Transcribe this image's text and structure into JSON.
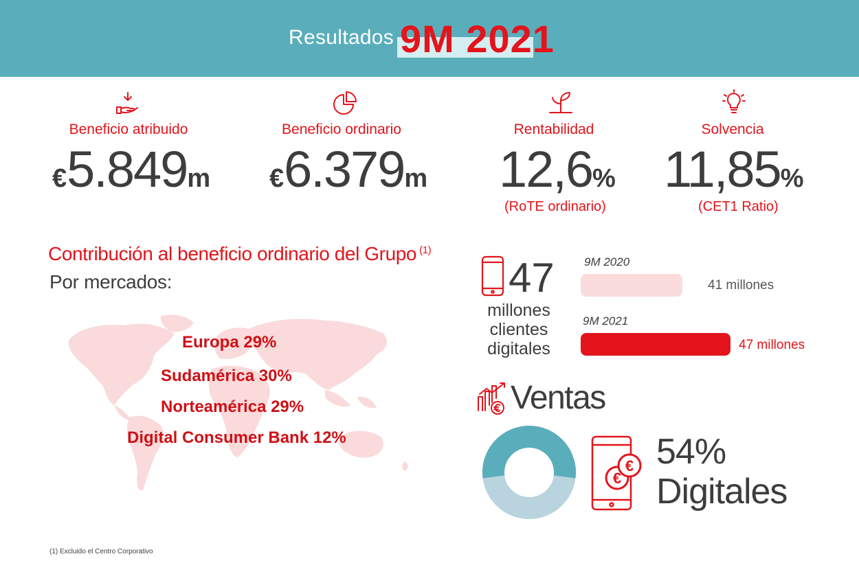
{
  "header": {
    "label": "Resultados",
    "period": "9M 2021"
  },
  "kpis": [
    {
      "label": "Beneficio atribuido",
      "currency": "€",
      "value": "5.849",
      "unit": "m",
      "icon": "hand-receive-icon"
    },
    {
      "label": "Beneficio ordinario",
      "currency": "€",
      "value": "6.379",
      "unit": "m",
      "icon": "pie-chart-icon"
    },
    {
      "label": "Rentabilidad",
      "value": "12,6",
      "unit": "%",
      "note": "(RoTE ordinario)",
      "icon": "sprout-icon"
    },
    {
      "label": "Solvencia",
      "value": "11,85",
      "unit": "%",
      "note": "(CET1 Ratio)",
      "icon": "lightbulb-icon"
    }
  ],
  "contribution": {
    "title": "Contribución al beneficio ordinario del Grupo",
    "footnote_ref": "(1)",
    "subtitle": "Por mercados:",
    "markets": [
      "Europa 29%",
      "Sudamérica 30%",
      "Norteamérica 29%",
      "Digital Consumer Bank 12%"
    ]
  },
  "digital_clients": {
    "number": "47",
    "text1": "millones",
    "text2": "clientes",
    "text3": "digitales",
    "bars": [
      {
        "year": "9M 2020",
        "value_label": "41 millones",
        "value": 41,
        "color": "#fbdcdc"
      },
      {
        "year": "9M 2021",
        "value_label": "47 millones",
        "value": 47,
        "color": "#e3141b"
      }
    ]
  },
  "sales": {
    "title": "Ventas",
    "percent": "54%",
    "label": "Digitales",
    "digital_share": 54,
    "colors": {
      "digital": "#5aaebb",
      "rest": "#b9d4de"
    }
  },
  "colors": {
    "header": "#5aaebb",
    "accent": "#e3141b",
    "text": "#3d3d3d",
    "map": "#fadada"
  },
  "footnote": "(1) Excluido el Centro Corporativo"
}
